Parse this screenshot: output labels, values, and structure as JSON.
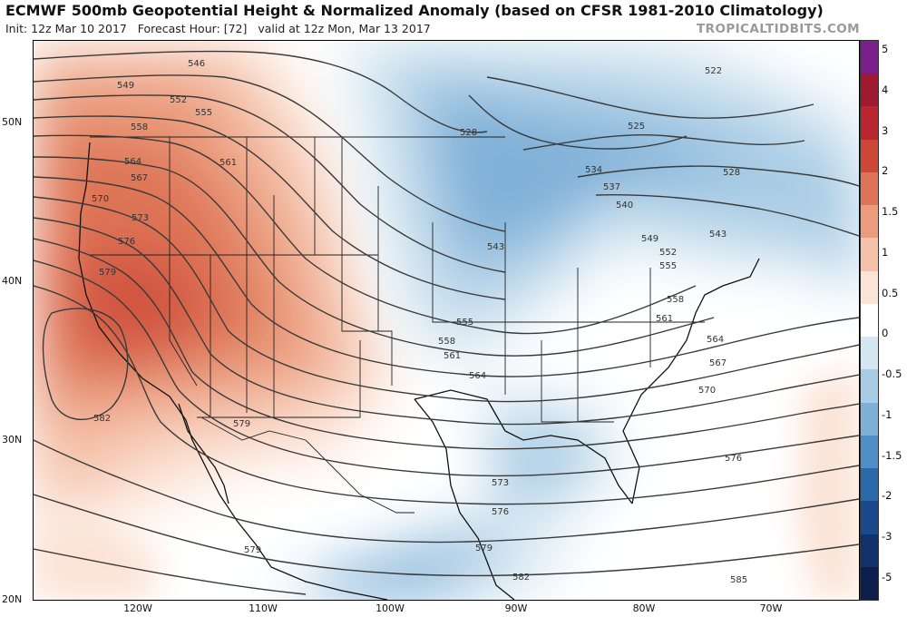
{
  "header": {
    "title": "ECMWF 500mb Geopotential Height & Normalized Anomaly (based on CFSR 1981-2010 Climatology)",
    "init": "Init: 12z Mar 10 2017",
    "forecast_hour": "Forecast Hour: [72]",
    "valid": "valid at 12z Mon, Mar 13 2017",
    "brand": "TROPICALTIDBITS.COM"
  },
  "axes": {
    "latitudes": [
      "50N",
      "40N",
      "30N",
      "20N"
    ],
    "longitudes": [
      "120W",
      "110W",
      "100W",
      "90W",
      "80W",
      "70W"
    ]
  },
  "contour_labels": [
    "546",
    "549",
    "552",
    "555",
    "558",
    "561",
    "564",
    "567",
    "570",
    "573",
    "576",
    "579",
    "582",
    "522",
    "525",
    "528",
    "534",
    "537",
    "540",
    "543",
    "585"
  ],
  "colorbar": {
    "labels": [
      "5",
      "4",
      "3",
      "2",
      "1.5",
      "1",
      "0.5",
      "0",
      "-0.5",
      "-1",
      "-1.5",
      "-2",
      "-3",
      "-5"
    ],
    "colors": [
      "#7b1f8f",
      "#9e1a2e",
      "#b8262f",
      "#cc4737",
      "#de7457",
      "#eb9c7d",
      "#f5c1a8",
      "#fbe3d6",
      "#ffffff",
      "#d4e6f1",
      "#a9cce5",
      "#7fb0d8",
      "#4f8fc5",
      "#2a6aab",
      "#1b4a8c",
      "#12306a",
      "#0e1e4a"
    ]
  }
}
